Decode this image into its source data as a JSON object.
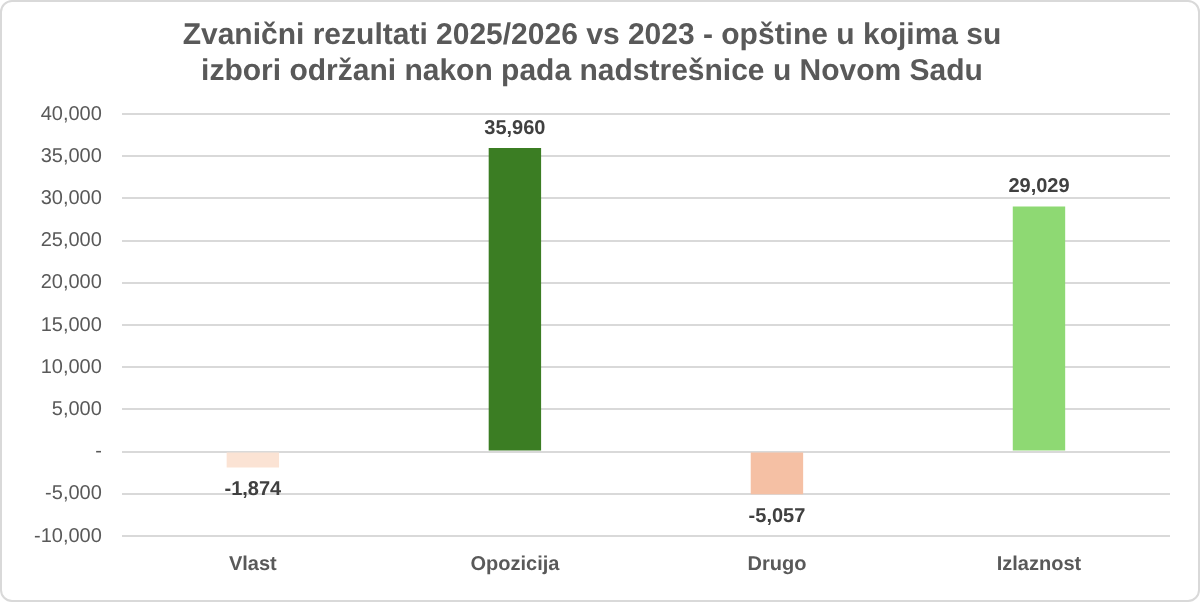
{
  "chart_data": {
    "type": "bar",
    "title": "Zvanični rezultati 2025/2026 vs 2023 - opštine u kojima su izbori održani nakon pada nadstrešnice u Novom Sadu",
    "categories": [
      "Vlast",
      "Opozicija",
      "Drugo",
      "Izlaznost"
    ],
    "values": [
      -1874,
      35960,
      -5057,
      29029
    ],
    "colors": [
      "#fbe3d4",
      "#3b7d23",
      "#f5c0a4",
      "#8ed973"
    ],
    "value_labels": [
      "-1,874",
      "35,960",
      "-5,057",
      "29,029"
    ],
    "ylim": [
      -10000,
      40000
    ],
    "yticks": [
      {
        "value": -10000,
        "label": "-10,000"
      },
      {
        "value": -5000,
        "label": "-5,000"
      },
      {
        "value": 0,
        "label": "-"
      },
      {
        "value": 5000,
        "label": "5,000"
      },
      {
        "value": 10000,
        "label": "10,000"
      },
      {
        "value": 15000,
        "label": "15,000"
      },
      {
        "value": 20000,
        "label": "20,000"
      },
      {
        "value": 25000,
        "label": "25,000"
      },
      {
        "value": 30000,
        "label": "30,000"
      },
      {
        "value": 35000,
        "label": "35,000"
      },
      {
        "value": 40000,
        "label": "40,000"
      }
    ],
    "grid": "y"
  }
}
